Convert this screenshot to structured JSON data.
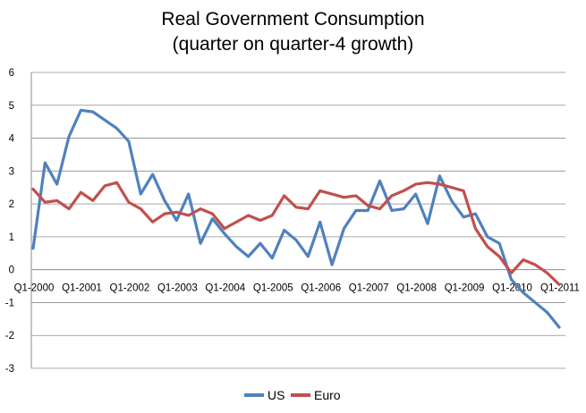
{
  "chart_data": {
    "type": "line",
    "title": [
      "Real Government Consumption",
      "(quarter on quarter-4 growth)"
    ],
    "xlabel": "",
    "ylabel": "",
    "ylim": [
      -3,
      6
    ],
    "yticks": [
      -3,
      -2,
      -1,
      0,
      1,
      2,
      3,
      4,
      5,
      6
    ],
    "x_tick_labels": [
      "Q1-2000",
      "Q1-2001",
      "Q1-2002",
      "Q1-2003",
      "Q1-2004",
      "Q1-2005",
      "Q1-2006",
      "Q1-2007",
      "Q1-2008",
      "Q1-2009",
      "Q1-2010",
      "Q1-2011"
    ],
    "grid": "horizontal",
    "legend_position": "bottom",
    "series": [
      {
        "name": "US",
        "color": "#4F81BD",
        "values": [
          0.65,
          3.25,
          2.6,
          4.05,
          4.85,
          4.8,
          4.55,
          4.3,
          3.9,
          2.3,
          2.9,
          2.1,
          1.5,
          2.3,
          0.8,
          1.55,
          1.1,
          0.7,
          0.4,
          0.8,
          0.35,
          1.2,
          0.9,
          0.4,
          1.45,
          0.15,
          1.25,
          1.8,
          1.8,
          2.7,
          1.8,
          1.85,
          2.3,
          1.4,
          2.85,
          2.1,
          1.6,
          1.7,
          1.0,
          0.8,
          -0.3,
          -0.7,
          -1.0,
          -1.3,
          -1.75
        ]
      },
      {
        "name": "Euro",
        "color": "#C0504D",
        "values": [
          2.45,
          2.05,
          2.1,
          1.85,
          2.35,
          2.1,
          2.55,
          2.65,
          2.05,
          1.85,
          1.45,
          1.7,
          1.75,
          1.65,
          1.85,
          1.7,
          1.25,
          1.45,
          1.65,
          1.5,
          1.65,
          2.25,
          1.9,
          1.85,
          2.4,
          2.3,
          2.2,
          2.25,
          1.95,
          1.85,
          2.25,
          2.4,
          2.6,
          2.65,
          2.6,
          2.5,
          2.4,
          1.25,
          0.7,
          0.4,
          -0.1,
          0.3,
          0.15,
          -0.1,
          -0.45
        ]
      }
    ]
  }
}
